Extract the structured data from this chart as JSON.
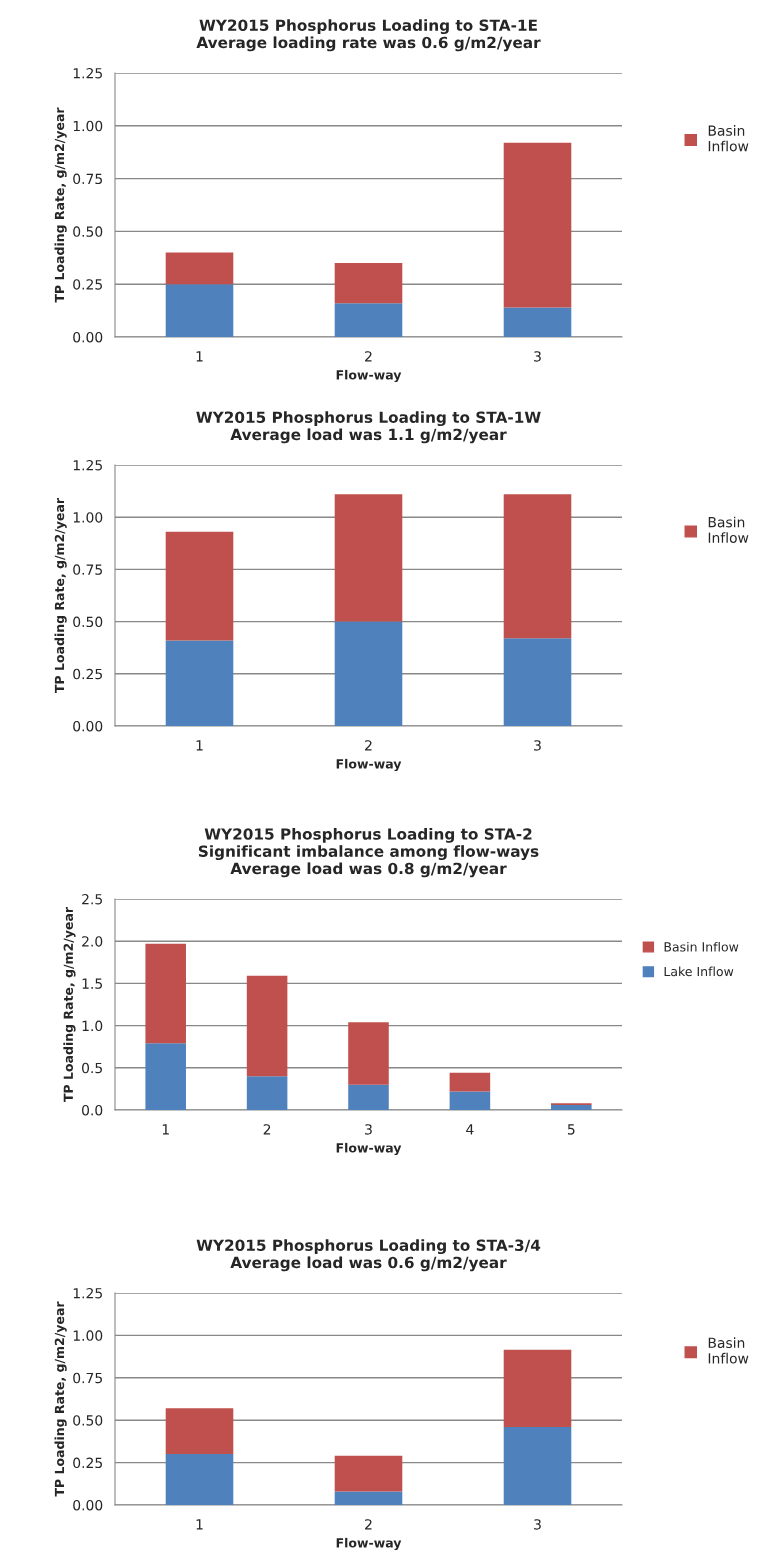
{
  "chart_data": [
    {
      "type": "bar",
      "stacked": true,
      "title": "WY2015 Phosphorus Loading to STA-1E\nAverage loading rate was 0.6 g/m2/year",
      "xlabel": "Flow-way",
      "ylabel": "TP Loading Rate, g/m2/year",
      "categories": [
        "1",
        "2",
        "3"
      ],
      "series": [
        {
          "color": "#4f81bd",
          "values": [
            0.25,
            0.16,
            0.14
          ]
        },
        {
          "name": "Basin Inflow",
          "color": "#c0504d",
          "values": [
            0.15,
            0.19,
            0.78
          ]
        }
      ],
      "ylim": [
        0,
        1.25
      ],
      "yticks": [
        {
          "value": 0,
          "label": "0.00"
        },
        0.25,
        {
          "value": 0.5,
          "label": "0.50"
        },
        0.75,
        {
          "value": 1,
          "label": "1.00"
        },
        1.25
      ],
      "grid": "y",
      "legend": "right"
    },
    {
      "type": "bar",
      "stacked": true,
      "title": "WY2015 Phosphorus Loading to STA-1W\nAverage load was 1.1 g/m2/year",
      "xlabel": "Flow-way",
      "ylabel": "TP Loading Rate, g/m2/year",
      "categories": [
        "1",
        "2",
        "3"
      ],
      "series": [
        {
          "color": "#4f81bd",
          "values": [
            0.41,
            0.5,
            0.42
          ]
        },
        {
          "name": "Basin Inflow",
          "color": "#c0504d",
          "values": [
            0.52,
            0.61,
            0.69
          ]
        }
      ],
      "ylim": [
        0,
        1.25
      ],
      "yticks": [
        {
          "value": 0,
          "label": "0.00"
        },
        0.25,
        {
          "value": 0.5,
          "label": "0.50"
        },
        0.75,
        {
          "value": 1,
          "label": "1.00"
        },
        1.25
      ],
      "grid": "y",
      "legend": "right"
    },
    {
      "type": "bar",
      "stacked": true,
      "title": "WY2015 Phosphorus Loading to STA-2\nSignificant imbalance among flow-ways\nAverage load was 0.8 g/m2/year",
      "xlabel": "Flow-way",
      "ylabel": "TP Loading Rate, g/m2/year",
      "categories": [
        "1",
        "2",
        "3",
        "4",
        "5"
      ],
      "series": [
        {
          "name": "Lake Inflow",
          "color": "#4f81bd",
          "values": [
            0.79,
            0.4,
            0.3,
            0.22,
            0.06
          ]
        },
        {
          "name": "Basin Inflow",
          "color": "#c0504d",
          "values": [
            1.18,
            1.19,
            0.74,
            0.22,
            0.02
          ]
        }
      ],
      "ylim": [
        0,
        2.5
      ],
      "yticks": [
        {
          "value": 0,
          "label": "0.0"
        },
        {
          "value": 0.5,
          "label": "0.5"
        },
        {
          "value": 1,
          "label": "1.0"
        },
        {
          "value": 1.5,
          "label": "1.5"
        },
        {
          "value": 2,
          "label": "2.0"
        },
        {
          "value": 2.5,
          "label": "2.5"
        }
      ],
      "grid": "y",
      "legend": "right"
    },
    {
      "type": "bar",
      "stacked": true,
      "title": "WY2015 Phosphorus Loading to STA-3/4\nAverage load was 0.6 g/m2/year",
      "xlabel": "Flow-way",
      "ylabel": "TP Loading Rate, g/m2/year",
      "categories": [
        "1",
        "2",
        "3"
      ],
      "series": [
        {
          "color": "#4f81bd",
          "values": [
            0.3,
            0.08,
            0.46
          ]
        },
        {
          "name": "Basin Inflow",
          "color": "#c0504d",
          "values": [
            0.27,
            0.21,
            0.455
          ]
        }
      ],
      "ylim": [
        0,
        1.25
      ],
      "yticks": [
        {
          "value": 0,
          "label": "0.00"
        },
        0.25,
        {
          "value": 0.5,
          "label": "0.50"
        },
        0.75,
        {
          "value": 1,
          "label": "1.00"
        },
        1.25
      ],
      "grid": "y",
      "legend": "right"
    }
  ]
}
